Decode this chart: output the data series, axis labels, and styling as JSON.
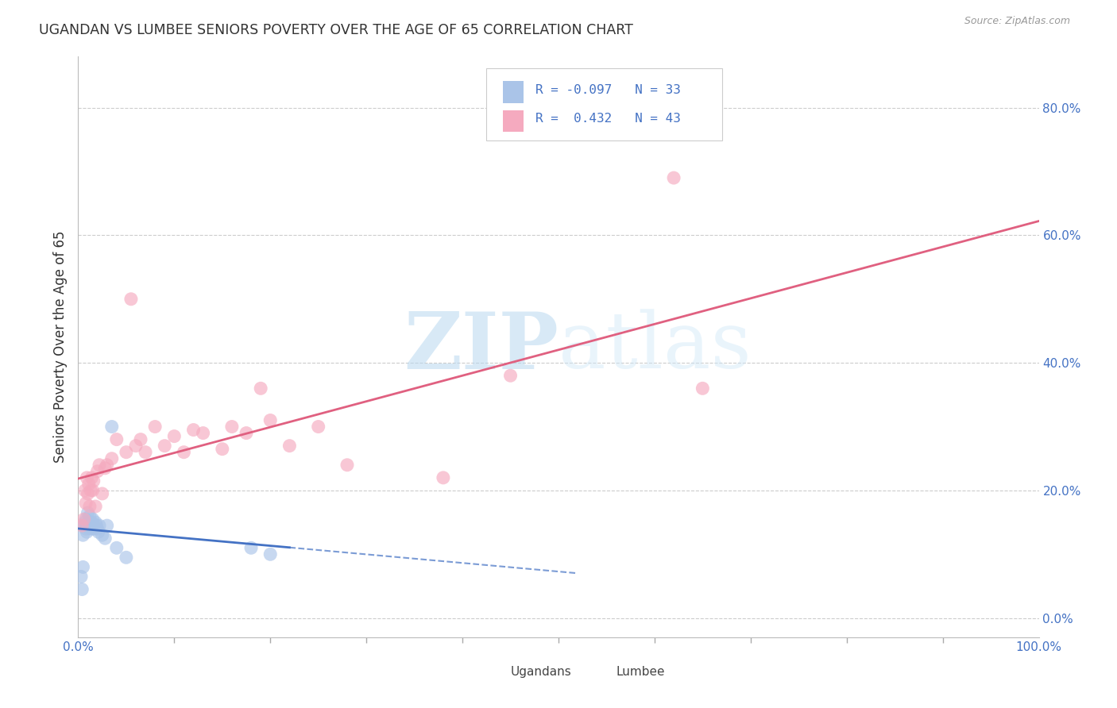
{
  "title": "UGANDAN VS LUMBEE SENIORS POVERTY OVER THE AGE OF 65 CORRELATION CHART",
  "source": "Source: ZipAtlas.com",
  "ylabel": "Seniors Poverty Over the Age of 65",
  "xlim": [
    0.0,
    1.0
  ],
  "ylim": [
    -0.03,
    0.88
  ],
  "yticks": [
    0.0,
    0.2,
    0.4,
    0.6,
    0.8
  ],
  "yticklabels": [
    "0.0%",
    "20.0%",
    "40.0%",
    "60.0%",
    "80.0%"
  ],
  "grid_color": "#cccccc",
  "background_color": "#ffffff",
  "ugandan_color": "#aac4e8",
  "lumbee_color": "#f5aabf",
  "ugandan_line_color": "#4472c4",
  "lumbee_line_color": "#e06080",
  "ugandan_R": -0.097,
  "ugandan_N": 33,
  "lumbee_R": 0.432,
  "lumbee_N": 43,
  "tick_label_color": "#4472c4",
  "watermark_zip": "ZIP",
  "watermark_atlas": "atlas",
  "ugandan_x": [
    0.003,
    0.004,
    0.005,
    0.005,
    0.006,
    0.007,
    0.008,
    0.008,
    0.009,
    0.01,
    0.01,
    0.011,
    0.012,
    0.012,
    0.013,
    0.014,
    0.015,
    0.015,
    0.016,
    0.017,
    0.018,
    0.019,
    0.02,
    0.021,
    0.022,
    0.025,
    0.028,
    0.03,
    0.035,
    0.04,
    0.05,
    0.18,
    0.2
  ],
  "ugandan_y": [
    0.065,
    0.045,
    0.08,
    0.13,
    0.145,
    0.15,
    0.14,
    0.155,
    0.135,
    0.145,
    0.165,
    0.15,
    0.14,
    0.16,
    0.145,
    0.15,
    0.14,
    0.155,
    0.145,
    0.14,
    0.15,
    0.145,
    0.14,
    0.135,
    0.145,
    0.13,
    0.125,
    0.145,
    0.3,
    0.11,
    0.095,
    0.11,
    0.1
  ],
  "lumbee_x": [
    0.004,
    0.006,
    0.007,
    0.008,
    0.009,
    0.01,
    0.011,
    0.012,
    0.013,
    0.014,
    0.015,
    0.016,
    0.018,
    0.02,
    0.022,
    0.025,
    0.028,
    0.03,
    0.035,
    0.04,
    0.05,
    0.055,
    0.06,
    0.065,
    0.07,
    0.08,
    0.09,
    0.1,
    0.11,
    0.12,
    0.13,
    0.15,
    0.16,
    0.175,
    0.19,
    0.2,
    0.22,
    0.25,
    0.28,
    0.38,
    0.45,
    0.62,
    0.65
  ],
  "lumbee_y": [
    0.145,
    0.155,
    0.2,
    0.18,
    0.22,
    0.195,
    0.21,
    0.175,
    0.2,
    0.22,
    0.2,
    0.215,
    0.175,
    0.23,
    0.24,
    0.195,
    0.235,
    0.24,
    0.25,
    0.28,
    0.26,
    0.5,
    0.27,
    0.28,
    0.26,
    0.3,
    0.27,
    0.285,
    0.26,
    0.295,
    0.29,
    0.265,
    0.3,
    0.29,
    0.36,
    0.31,
    0.27,
    0.3,
    0.24,
    0.22,
    0.38,
    0.69,
    0.36
  ]
}
